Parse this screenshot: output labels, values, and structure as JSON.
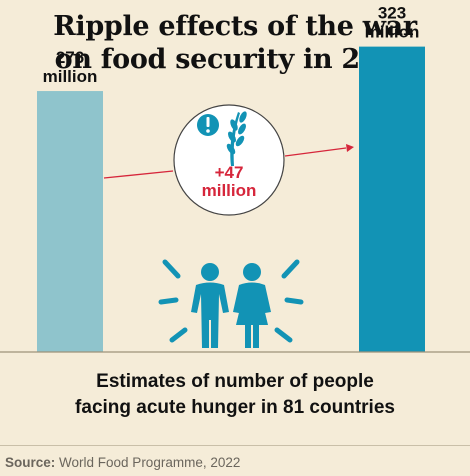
{
  "title": {
    "line1": "Ripple effects of the war",
    "line2": "on food security in 2022"
  },
  "colors": {
    "background": "#f5ecd8",
    "bar_2021": "#8fc4cc",
    "bar_2022": "#1293b5",
    "arrow": "#d6263b",
    "highlight": "#d6263b",
    "icon": "#1293b5",
    "baseline": "#9e927a"
  },
  "chart_data": {
    "type": "bar",
    "categories": [
      "",
      ""
    ],
    "values": [
      276,
      323
    ],
    "unit": "million",
    "data_labels": [
      {
        "value": "276",
        "unit": "million"
      },
      {
        "value": "323",
        "unit": "million"
      }
    ],
    "annotation": {
      "value": "+47",
      "unit": "million"
    },
    "icons": [
      "alert-icon",
      "wheat-icon",
      "people-icon"
    ],
    "ylim": [
      0,
      330
    ],
    "grid": false,
    "legend": "none"
  },
  "caption": {
    "line1": "Estimates of number of people",
    "line2": "facing acute hunger in 81 countries"
  },
  "source": {
    "label": "Source:",
    "text": "World Food Programme, 2022"
  }
}
